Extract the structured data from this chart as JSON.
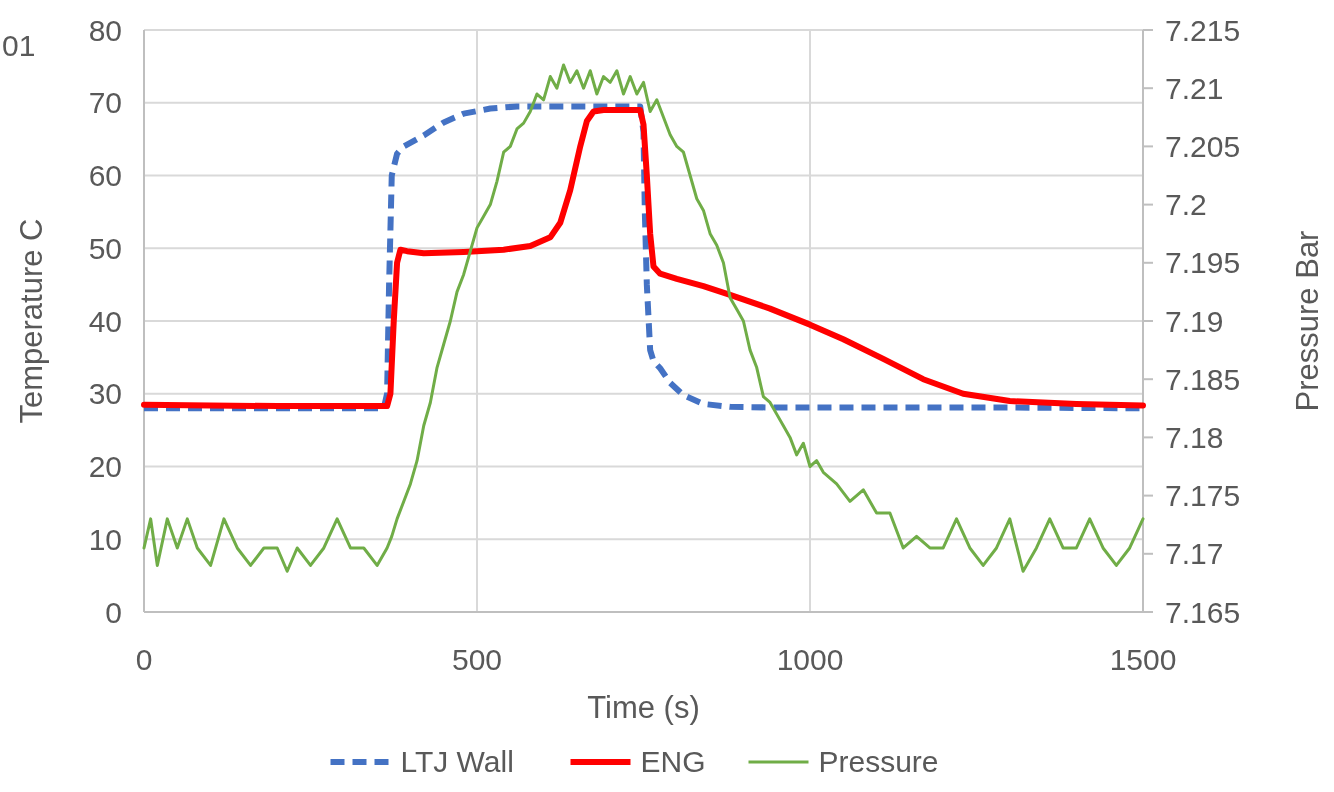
{
  "chart_data": {
    "type": "line",
    "xlabel": "Time (s)",
    "ylabel": "Temperature C",
    "y2label": "Pressure Bar",
    "xlim": [
      0,
      1500
    ],
    "xticks": [
      0,
      500,
      1000,
      1500
    ],
    "ylim": [
      0,
      80
    ],
    "yticks": [
      0,
      10,
      20,
      30,
      40,
      50,
      60,
      70,
      80
    ],
    "y2lim": [
      7.165,
      7.215
    ],
    "y2ticks": [
      7.165,
      7.17,
      7.175,
      7.18,
      7.185,
      7.19,
      7.195,
      7.2,
      7.205,
      7.21,
      7.215
    ],
    "grid": true,
    "legend": "bottom",
    "annotations": [
      "01"
    ],
    "series": [
      {
        "name": "LTJ Wall",
        "color": "#4472c4",
        "line_style": "dashed",
        "x": [
          0,
          100,
          200,
          300,
          360,
          365,
          368,
          372,
          380,
          390,
          420,
          450,
          480,
          520,
          560,
          620,
          700,
          745,
          750,
          752,
          755,
          760,
          765,
          775,
          790,
          810,
          840,
          880,
          950,
          1100,
          1300,
          1500
        ],
        "values": [
          28,
          28,
          28,
          28,
          28,
          30,
          45,
          60,
          63,
          64,
          65.5,
          67.3,
          68.5,
          69.2,
          69.5,
          69.5,
          69.5,
          69.5,
          66,
          55,
          45,
          36,
          34.5,
          33.5,
          31.5,
          29.8,
          28.6,
          28.2,
          28.1,
          28.1,
          28.1,
          28
        ]
      },
      {
        "name": "ENG",
        "color": "#ff0000",
        "line_style": "solid",
        "x": [
          0,
          100,
          200,
          300,
          365,
          370,
          375,
          380,
          385,
          395,
          420,
          480,
          540,
          580,
          610,
          625,
          640,
          655,
          665,
          675,
          690,
          720,
          745,
          750,
          755,
          760,
          765,
          775,
          800,
          840,
          880,
          940,
          1000,
          1050,
          1110,
          1170,
          1230,
          1300,
          1400,
          1500
        ],
        "values": [
          28.5,
          28.4,
          28.3,
          28.3,
          28.3,
          30,
          40,
          48,
          49.8,
          49.6,
          49.3,
          49.5,
          49.8,
          50.3,
          51.5,
          53.5,
          58,
          64,
          67.5,
          68.8,
          69,
          69,
          69,
          67,
          60,
          52,
          47.5,
          46.5,
          45.8,
          44.8,
          43.6,
          41.7,
          39.5,
          37.5,
          34.8,
          32,
          30,
          29,
          28.6,
          28.4
        ]
      },
      {
        "name": "Pressure",
        "color": "#70ad47",
        "line_style": "solid",
        "axis": "y2",
        "x": [
          0,
          10,
          20,
          35,
          50,
          65,
          80,
          100,
          120,
          140,
          160,
          180,
          200,
          215,
          230,
          250,
          270,
          290,
          310,
          330,
          350,
          365,
          372,
          380,
          390,
          400,
          410,
          420,
          430,
          440,
          450,
          460,
          470,
          480,
          490,
          500,
          510,
          520,
          530,
          540,
          550,
          560,
          570,
          580,
          590,
          600,
          610,
          620,
          630,
          640,
          650,
          660,
          670,
          680,
          690,
          700,
          710,
          720,
          730,
          740,
          750,
          760,
          770,
          780,
          790,
          800,
          810,
          820,
          830,
          840,
          850,
          860,
          870,
          880,
          890,
          900,
          910,
          920,
          930,
          940,
          950,
          960,
          970,
          980,
          990,
          1000,
          1010,
          1020,
          1040,
          1060,
          1080,
          1100,
          1120,
          1140,
          1160,
          1180,
          1200,
          1220,
          1240,
          1260,
          1280,
          1300,
          1320,
          1340,
          1360,
          1380,
          1400,
          1420,
          1440,
          1460,
          1480,
          1500
        ],
        "values": [
          7.1705,
          7.173,
          7.169,
          7.173,
          7.1705,
          7.173,
          7.1705,
          7.169,
          7.173,
          7.1705,
          7.169,
          7.1705,
          7.1705,
          7.1685,
          7.1705,
          7.169,
          7.1705,
          7.173,
          7.1705,
          7.1705,
          7.169,
          7.1705,
          7.1715,
          7.173,
          7.1745,
          7.176,
          7.178,
          7.181,
          7.183,
          7.186,
          7.188,
          7.19,
          7.1925,
          7.194,
          7.196,
          7.198,
          7.199,
          7.2,
          7.202,
          7.2045,
          7.205,
          7.2065,
          7.207,
          7.208,
          7.2095,
          7.209,
          7.211,
          7.21,
          7.212,
          7.2105,
          7.2115,
          7.21,
          7.2115,
          7.2095,
          7.211,
          7.2105,
          7.2115,
          7.2095,
          7.211,
          7.2095,
          7.2105,
          7.208,
          7.209,
          7.2075,
          7.206,
          7.205,
          7.2045,
          7.2025,
          7.2005,
          7.1995,
          7.1975,
          7.1965,
          7.195,
          7.192,
          7.191,
          7.19,
          7.1875,
          7.186,
          7.1835,
          7.183,
          7.182,
          7.181,
          7.18,
          7.1785,
          7.1795,
          7.1775,
          7.178,
          7.177,
          7.176,
          7.1745,
          7.1755,
          7.1735,
          7.1735,
          7.1705,
          7.1715,
          7.1705,
          7.1705,
          7.173,
          7.1705,
          7.169,
          7.1705,
          7.173,
          7.1685,
          7.1705,
          7.173,
          7.1705,
          7.1705,
          7.173,
          7.1705,
          7.169,
          7.1705,
          7.173
        ]
      }
    ]
  }
}
